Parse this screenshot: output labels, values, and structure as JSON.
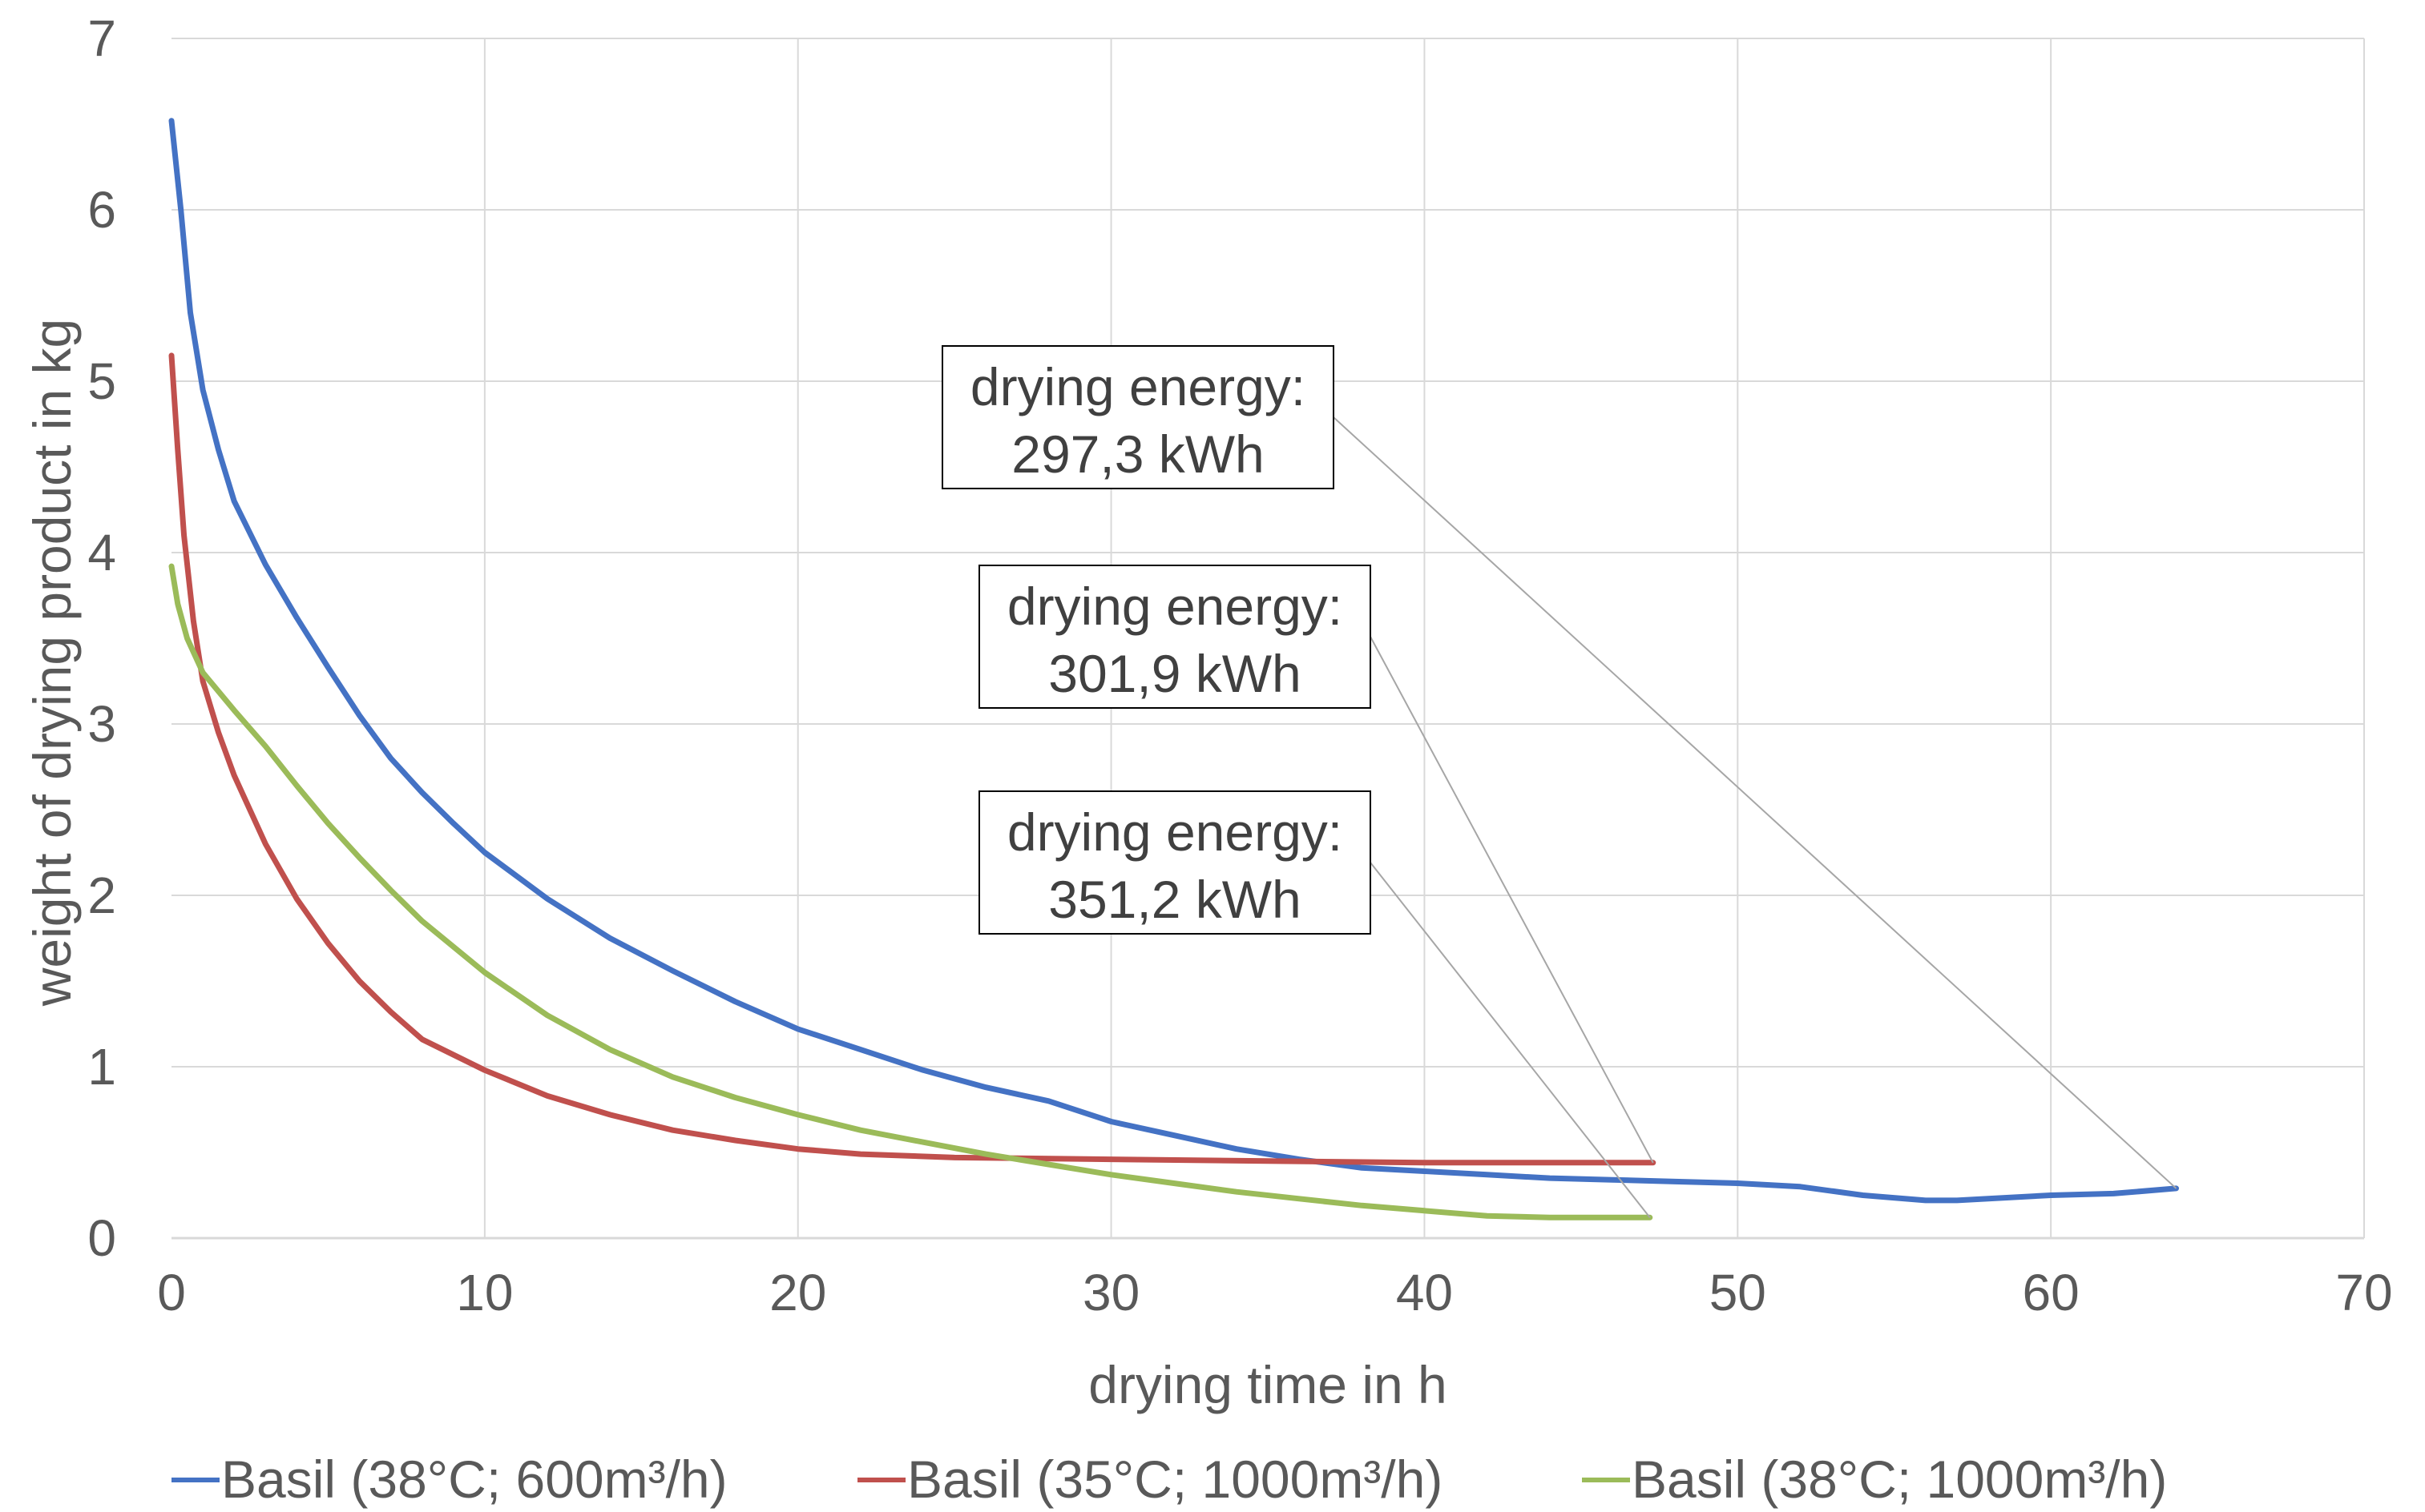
{
  "chart_data": {
    "type": "line",
    "title": "",
    "xlabel": "drying time in h",
    "ylabel": "weight of drying product in kg",
    "xlim": [
      0,
      70
    ],
    "ylim": [
      0,
      7
    ],
    "xticks": [
      "0",
      "10",
      "20",
      "30",
      "40",
      "50",
      "60",
      "70"
    ],
    "yticks": [
      "0",
      "1",
      "2",
      "3",
      "4",
      "5",
      "6",
      "7"
    ],
    "grid": true,
    "legend_position": "bottom",
    "series": [
      {
        "name": "Basil (38°C; 600m³/h)",
        "color": "#4472C4",
        "points": [
          [
            0,
            6.52
          ],
          [
            0.3,
            6.0
          ],
          [
            0.6,
            5.4
          ],
          [
            1,
            4.95
          ],
          [
            1.5,
            4.6
          ],
          [
            2,
            4.3
          ],
          [
            3,
            3.93
          ],
          [
            4,
            3.62
          ],
          [
            5,
            3.33
          ],
          [
            6,
            3.05
          ],
          [
            7,
            2.8
          ],
          [
            8,
            2.6
          ],
          [
            9,
            2.42
          ],
          [
            10,
            2.25
          ],
          [
            12,
            1.98
          ],
          [
            14,
            1.75
          ],
          [
            16,
            1.56
          ],
          [
            18,
            1.38
          ],
          [
            20,
            1.22
          ],
          [
            22,
            1.1
          ],
          [
            24,
            0.98
          ],
          [
            26,
            0.88
          ],
          [
            28,
            0.8
          ],
          [
            30,
            0.68
          ],
          [
            32,
            0.6
          ],
          [
            34,
            0.52
          ],
          [
            36,
            0.46
          ],
          [
            38,
            0.41
          ],
          [
            40,
            0.39
          ],
          [
            42,
            0.37
          ],
          [
            44,
            0.35
          ],
          [
            46,
            0.34
          ],
          [
            48,
            0.33
          ],
          [
            50,
            0.32
          ],
          [
            52,
            0.3
          ],
          [
            54,
            0.25
          ],
          [
            56,
            0.22
          ],
          [
            57,
            0.22
          ],
          [
            58,
            0.23
          ],
          [
            60,
            0.25
          ],
          [
            62,
            0.26
          ],
          [
            64,
            0.29
          ]
        ]
      },
      {
        "name": "Basil (35°C; 1000m³/h)",
        "color": "#C0504D",
        "points": [
          [
            0,
            5.15
          ],
          [
            0.2,
            4.6
          ],
          [
            0.4,
            4.1
          ],
          [
            0.7,
            3.6
          ],
          [
            1,
            3.25
          ],
          [
            1.5,
            2.95
          ],
          [
            2,
            2.7
          ],
          [
            3,
            2.3
          ],
          [
            4,
            1.98
          ],
          [
            5,
            1.72
          ],
          [
            6,
            1.5
          ],
          [
            7,
            1.32
          ],
          [
            8,
            1.16
          ],
          [
            10,
            0.98
          ],
          [
            12,
            0.83
          ],
          [
            14,
            0.72
          ],
          [
            16,
            0.63
          ],
          [
            18,
            0.57
          ],
          [
            20,
            0.52
          ],
          [
            22,
            0.49
          ],
          [
            25,
            0.47
          ],
          [
            30,
            0.46
          ],
          [
            35,
            0.45
          ],
          [
            40,
            0.44
          ],
          [
            44,
            0.44
          ],
          [
            47.3,
            0.44
          ]
        ]
      },
      {
        "name": "Basil (38°C; 1000m³/h)",
        "color": "#9BBB59",
        "points": [
          [
            0,
            3.92
          ],
          [
            0.2,
            3.7
          ],
          [
            0.5,
            3.5
          ],
          [
            1,
            3.3
          ],
          [
            2,
            3.08
          ],
          [
            3,
            2.87
          ],
          [
            4,
            2.64
          ],
          [
            5,
            2.42
          ],
          [
            6,
            2.22
          ],
          [
            7,
            2.03
          ],
          [
            8,
            1.85
          ],
          [
            10,
            1.55
          ],
          [
            12,
            1.3
          ],
          [
            14,
            1.1
          ],
          [
            16,
            0.94
          ],
          [
            18,
            0.82
          ],
          [
            20,
            0.72
          ],
          [
            22,
            0.63
          ],
          [
            24,
            0.56
          ],
          [
            26,
            0.49
          ],
          [
            28,
            0.43
          ],
          [
            30,
            0.37
          ],
          [
            32,
            0.32
          ],
          [
            34,
            0.27
          ],
          [
            36,
            0.23
          ],
          [
            38,
            0.19
          ],
          [
            40,
            0.16
          ],
          [
            42,
            0.13
          ],
          [
            44,
            0.12
          ],
          [
            46,
            0.12
          ],
          [
            47.2,
            0.12
          ]
        ]
      }
    ],
    "annotations": [
      {
        "line1": "drying energy:",
        "line2": "297,3 kWh",
        "target": [
          64,
          0.29
        ]
      },
      {
        "line1": "drying energy:",
        "line2": "301,9 kWh",
        "target": [
          47.3,
          0.44
        ]
      },
      {
        "line1": "drying energy:",
        "line2": "351,2 kWh",
        "target": [
          47.2,
          0.12
        ]
      }
    ]
  }
}
